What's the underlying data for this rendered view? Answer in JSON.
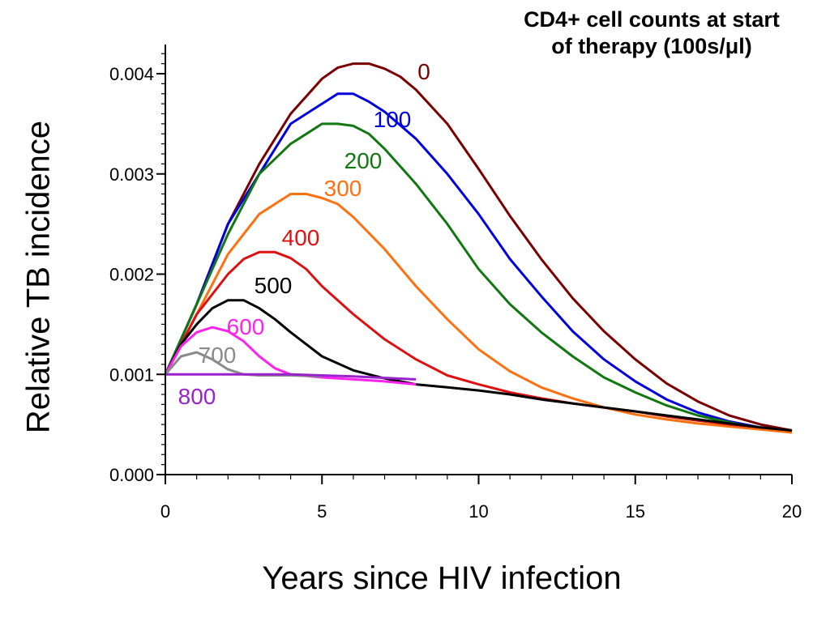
{
  "chart_data": {
    "type": "line",
    "title_line1": "CD4+ cell counts at start",
    "title_line2": "of therapy (100s/μl)",
    "xlabel": "Years since HIV infection",
    "ylabel": "Relative TB incidence",
    "xlim": [
      0,
      20
    ],
    "ylim": [
      0,
      0.0043
    ],
    "xticks": [
      0,
      5,
      10,
      15,
      20
    ],
    "xtick_labels": [
      "0",
      "5",
      "10",
      "15",
      "20"
    ],
    "yticks": [
      0,
      0.001,
      0.002,
      0.003,
      0.004
    ],
    "ytick_labels": [
      "0.000",
      "0.001",
      "0.002",
      "0.003",
      "0.004"
    ],
    "grid": false,
    "legend": "inline labels",
    "series": [
      {
        "name": "0",
        "color": "#7a0000",
        "x": [
          0,
          1,
          2,
          3,
          4,
          5,
          5.5,
          6,
          6.5,
          7,
          7.5,
          8,
          9,
          10,
          11,
          12,
          13,
          14,
          15,
          16,
          17,
          18,
          19,
          20
        ],
        "y": [
          0.001,
          0.0017,
          0.0025,
          0.0031,
          0.0036,
          0.00395,
          0.00406,
          0.0041,
          0.0041,
          0.00405,
          0.00397,
          0.00384,
          0.0035,
          0.00305,
          0.00258,
          0.00215,
          0.00176,
          0.00143,
          0.00115,
          0.00091,
          0.00073,
          0.00059,
          0.0005,
          0.00044
        ]
      },
      {
        "name": "100",
        "color": "#0000dd",
        "x": [
          0,
          1,
          2,
          3,
          4,
          4.5,
          5,
          5.5,
          6,
          6.5,
          7,
          8,
          9,
          10,
          11,
          12,
          13,
          14,
          15,
          16,
          17,
          18,
          19,
          20
        ],
        "y": [
          0.001,
          0.0017,
          0.0025,
          0.003,
          0.0035,
          0.0036,
          0.0037,
          0.0038,
          0.0038,
          0.00372,
          0.00362,
          0.00335,
          0.003,
          0.0026,
          0.00215,
          0.00178,
          0.00143,
          0.00115,
          0.00093,
          0.00075,
          0.00062,
          0.00053,
          0.00047,
          0.00043
        ]
      },
      {
        "name": "200",
        "color": "#117711",
        "x": [
          0,
          1,
          2,
          3,
          4,
          4.5,
          5,
          5.5,
          6,
          6.5,
          7,
          8,
          9,
          10,
          11,
          12,
          13,
          14,
          15,
          16,
          17,
          18,
          19,
          20
        ],
        "y": [
          0.001,
          0.0017,
          0.0024,
          0.003,
          0.0033,
          0.0034,
          0.0035,
          0.0035,
          0.00348,
          0.0034,
          0.00325,
          0.0029,
          0.0025,
          0.00205,
          0.0017,
          0.00142,
          0.00118,
          0.00097,
          0.00082,
          0.00069,
          0.00059,
          0.00052,
          0.00046,
          0.00042
        ]
      },
      {
        "name": "300",
        "color": "#ff7010",
        "x": [
          0,
          1,
          2,
          3,
          3.5,
          4,
          4.5,
          5,
          5.5,
          6,
          7,
          8,
          9,
          10,
          11,
          12,
          13,
          14,
          15,
          16,
          17,
          18,
          19,
          20
        ],
        "y": [
          0.001,
          0.0016,
          0.0022,
          0.0026,
          0.0027,
          0.0028,
          0.0028,
          0.00276,
          0.0027,
          0.00257,
          0.00225,
          0.00188,
          0.00155,
          0.00125,
          0.00103,
          0.00087,
          0.00076,
          0.00067,
          0.0006,
          0.00055,
          0.00051,
          0.00048,
          0.00045,
          0.00042
        ]
      },
      {
        "name": "400",
        "color": "#dd1111",
        "x": [
          0,
          1,
          2,
          2.5,
          3,
          3.5,
          4,
          4.5,
          5,
          6,
          7,
          8,
          9,
          10,
          11,
          12,
          13,
          14,
          15,
          16,
          17,
          18,
          19,
          20
        ],
        "y": [
          0.001,
          0.0016,
          0.002,
          0.00215,
          0.00222,
          0.00222,
          0.00216,
          0.00205,
          0.00188,
          0.0016,
          0.00135,
          0.00115,
          0.00099,
          0.0009,
          0.00082,
          0.00076,
          0.00071,
          0.00067,
          0.00063,
          0.00058,
          0.00054,
          0.0005,
          0.00047,
          0.00044
        ]
      },
      {
        "name": "500",
        "color": "#000000",
        "x": [
          0,
          0.5,
          1,
          1.5,
          2,
          2.5,
          3,
          3.5,
          4,
          4.5,
          5,
          6,
          7,
          8,
          9,
          10,
          11,
          12,
          13,
          14,
          15,
          16,
          17,
          18,
          19,
          20
        ],
        "y": [
          0.001,
          0.0013,
          0.0015,
          0.00166,
          0.00174,
          0.00174,
          0.00166,
          0.00155,
          0.00142,
          0.0013,
          0.00118,
          0.00104,
          0.00096,
          0.0009,
          0.00087,
          0.00084,
          0.0008,
          0.00075,
          0.00071,
          0.00067,
          0.00063,
          0.00059,
          0.00055,
          0.00051,
          0.00047,
          0.00044
        ]
      },
      {
        "name": "600",
        "color": "#ff22ee",
        "x": [
          0,
          0.5,
          1,
          1.5,
          2,
          2.5,
          3,
          3.5,
          4,
          5,
          6,
          7,
          8
        ],
        "y": [
          0.001,
          0.00128,
          0.00142,
          0.00147,
          0.00143,
          0.00133,
          0.00118,
          0.00106,
          0.001,
          0.00097,
          0.00095,
          0.00093,
          0.0009
        ]
      },
      {
        "name": "700",
        "color": "#8a8a8a",
        "x": [
          0,
          0.5,
          1,
          1.5,
          2,
          2.5,
          3,
          4,
          5
        ],
        "y": [
          0.001,
          0.00118,
          0.00122,
          0.00115,
          0.00105,
          0.001,
          0.00099,
          0.00099,
          0.00098
        ]
      },
      {
        "name": "800",
        "color": "#9922cc",
        "x": [
          0,
          2,
          4,
          6,
          8
        ],
        "y": [
          0.001,
          0.001,
          0.001,
          0.00098,
          0.00095
        ]
      }
    ]
  }
}
